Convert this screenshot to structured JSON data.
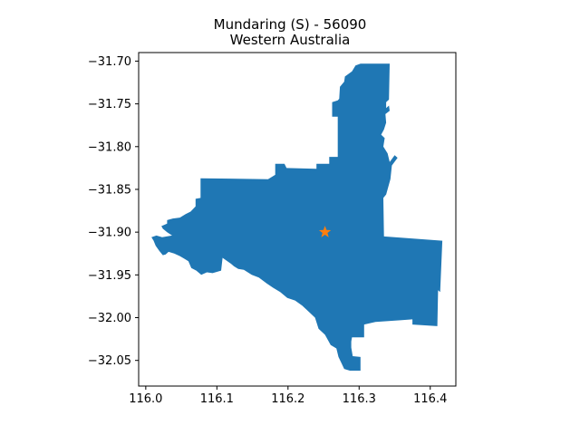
{
  "chart_data": {
    "type": "map",
    "title_line1": "Mundaring (S) - 56090",
    "title_line2": "Western Australia",
    "xlabel": "",
    "ylabel": "",
    "xlim": [
      115.99,
      116.436
    ],
    "ylim": [
      -32.08,
      -31.69
    ],
    "xticks": [
      116.0,
      116.1,
      116.2,
      116.3,
      116.4
    ],
    "xtick_labels": [
      "116.0",
      "116.1",
      "116.2",
      "116.3",
      "116.4"
    ],
    "yticks": [
      -31.7,
      -31.75,
      -31.8,
      -31.85,
      -31.9,
      -31.95,
      -32.0,
      -32.05
    ],
    "ytick_labels": [
      "−31.70",
      "−31.75",
      "−31.80",
      "−31.85",
      "−31.90",
      "−31.95",
      "−32.00",
      "−32.05"
    ],
    "grid": false,
    "region_color": "#1f77b4",
    "marker_color": "#ff7f0e",
    "marker": {
      "shape": "star",
      "lon": 116.252,
      "lat": -31.9
    },
    "region": {
      "name": "Mundaring (S)",
      "outline": [
        [
          116.295,
          -31.705
        ],
        [
          116.302,
          -31.703
        ],
        [
          116.343,
          -31.703
        ],
        [
          116.342,
          -31.745
        ],
        [
          116.338,
          -31.748
        ],
        [
          116.338,
          -31.755
        ],
        [
          116.342,
          -31.752
        ],
        [
          116.343,
          -31.758
        ],
        [
          116.337,
          -31.762
        ],
        [
          116.338,
          -31.772
        ],
        [
          116.335,
          -31.78
        ],
        [
          116.331,
          -31.786
        ],
        [
          116.336,
          -31.79
        ],
        [
          116.334,
          -31.8
        ],
        [
          116.34,
          -31.808
        ],
        [
          116.343,
          -31.818
        ],
        [
          116.35,
          -31.81
        ],
        [
          116.354,
          -31.813
        ],
        [
          116.346,
          -31.822
        ],
        [
          116.344,
          -31.838
        ],
        [
          116.338,
          -31.856
        ],
        [
          116.334,
          -31.86
        ],
        [
          116.335,
          -31.905
        ],
        [
          116.417,
          -31.91
        ],
        [
          116.414,
          -31.97
        ],
        [
          116.411,
          -31.968
        ],
        [
          116.41,
          -32.01
        ],
        [
          116.375,
          -32.008
        ],
        [
          116.375,
          -32.002
        ],
        [
          116.36,
          -32.003
        ],
        [
          116.323,
          -32.005
        ],
        [
          116.307,
          -32.008
        ],
        [
          116.307,
          -32.023
        ],
        [
          116.29,
          -32.023
        ],
        [
          116.289,
          -32.028
        ],
        [
          116.289,
          -32.035
        ],
        [
          116.291,
          -32.045
        ],
        [
          116.302,
          -32.046
        ],
        [
          116.302,
          -32.062
        ],
        [
          116.287,
          -32.062
        ],
        [
          116.279,
          -32.06
        ],
        [
          116.275,
          -32.053
        ],
        [
          116.271,
          -32.046
        ],
        [
          116.268,
          -32.036
        ],
        [
          116.26,
          -32.032
        ],
        [
          116.252,
          -32.02
        ],
        [
          116.243,
          -32.013
        ],
        [
          116.238,
          -32.0
        ],
        [
          116.229,
          -31.993
        ],
        [
          116.22,
          -31.986
        ],
        [
          116.21,
          -31.98
        ],
        [
          116.199,
          -31.977
        ],
        [
          116.189,
          -31.97
        ],
        [
          116.179,
          -31.965
        ],
        [
          116.17,
          -31.96
        ],
        [
          116.159,
          -31.953
        ],
        [
          116.149,
          -31.95
        ],
        [
          116.138,
          -31.944
        ],
        [
          116.13,
          -31.943
        ],
        [
          116.124,
          -31.94
        ],
        [
          116.12,
          -31.937
        ],
        [
          116.108,
          -31.93
        ],
        [
          116.106,
          -31.945
        ],
        [
          116.094,
          -31.948
        ],
        [
          116.086,
          -31.947
        ],
        [
          116.078,
          -31.95
        ],
        [
          116.071,
          -31.945
        ],
        [
          116.064,
          -31.942
        ],
        [
          116.06,
          -31.934
        ],
        [
          116.054,
          -31.931
        ],
        [
          116.048,
          -31.928
        ],
        [
          116.04,
          -31.925
        ],
        [
          116.032,
          -31.923
        ],
        [
          116.028,
          -31.926
        ],
        [
          116.024,
          -31.927
        ],
        [
          116.019,
          -31.922
        ],
        [
          116.014,
          -31.916
        ],
        [
          116.011,
          -31.91
        ],
        [
          116.008,
          -31.906
        ],
        [
          116.015,
          -31.904
        ],
        [
          116.023,
          -31.906
        ],
        [
          116.037,
          -31.904
        ],
        [
          116.03,
          -31.9
        ],
        [
          116.024,
          -31.896
        ],
        [
          116.022,
          -31.893
        ],
        [
          116.03,
          -31.89
        ],
        [
          116.03,
          -31.886
        ],
        [
          116.038,
          -31.884
        ],
        [
          116.048,
          -31.883
        ],
        [
          116.056,
          -31.879
        ],
        [
          116.063,
          -31.876
        ],
        [
          116.07,
          -31.87
        ],
        [
          116.07,
          -31.861
        ],
        [
          116.077,
          -31.86
        ],
        [
          116.077,
          -31.837
        ],
        [
          116.172,
          -31.838
        ],
        [
          116.182,
          -31.833
        ],
        [
          116.182,
          -31.82
        ],
        [
          116.195,
          -31.82
        ],
        [
          116.198,
          -31.825
        ],
        [
          116.24,
          -31.826
        ],
        [
          116.24,
          -31.82
        ],
        [
          116.258,
          -31.82
        ],
        [
          116.258,
          -31.812
        ],
        [
          116.27,
          -31.812
        ],
        [
          116.27,
          -31.765
        ],
        [
          116.262,
          -31.765
        ],
        [
          116.262,
          -31.748
        ],
        [
          116.27,
          -31.746
        ],
        [
          116.272,
          -31.744
        ],
        [
          116.273,
          -31.73
        ],
        [
          116.279,
          -31.724
        ],
        [
          116.28,
          -31.718
        ],
        [
          116.29,
          -31.712
        ],
        [
          116.295,
          -31.705
        ]
      ]
    }
  }
}
